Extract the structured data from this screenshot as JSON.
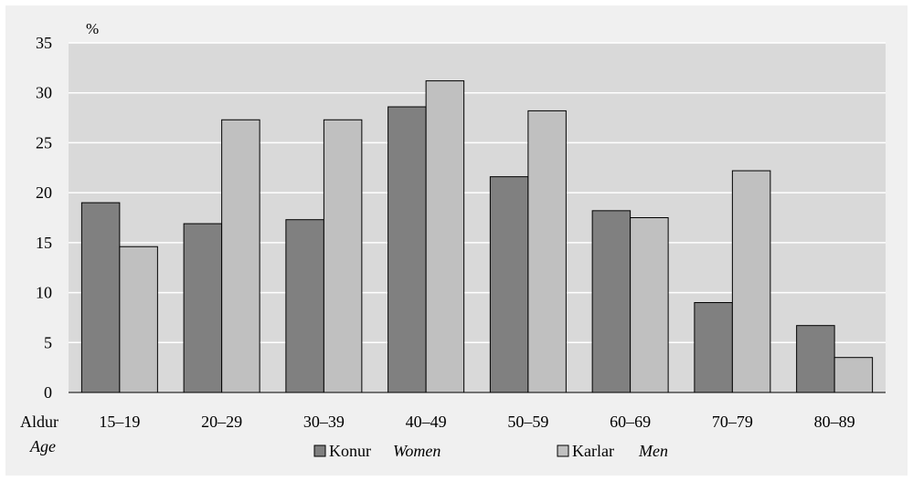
{
  "chart_data": {
    "type": "bar",
    "unit_label": "%",
    "xlabel": "Aldur",
    "xlabel_secondary": "Age",
    "ylim": [
      0,
      35
    ],
    "yticks": [
      0,
      5,
      10,
      15,
      20,
      25,
      30,
      35
    ],
    "categories": [
      "15–19",
      "20–29",
      "30–39",
      "40–49",
      "50–59",
      "60–69",
      "70–79",
      "80–89"
    ],
    "series": [
      {
        "name": "Konur",
        "name_secondary": "Women",
        "color": "#808080",
        "values": [
          19.0,
          16.9,
          17.3,
          28.6,
          21.6,
          18.2,
          9.0,
          6.7
        ]
      },
      {
        "name": "Karlar",
        "name_secondary": "Men",
        "color": "#c0c0c0",
        "values": [
          14.6,
          27.3,
          27.3,
          31.2,
          28.2,
          17.5,
          22.2,
          3.5
        ]
      }
    ],
    "grid": true,
    "legend_position": "bottom-center",
    "plot_background": "#d9d9d9"
  }
}
